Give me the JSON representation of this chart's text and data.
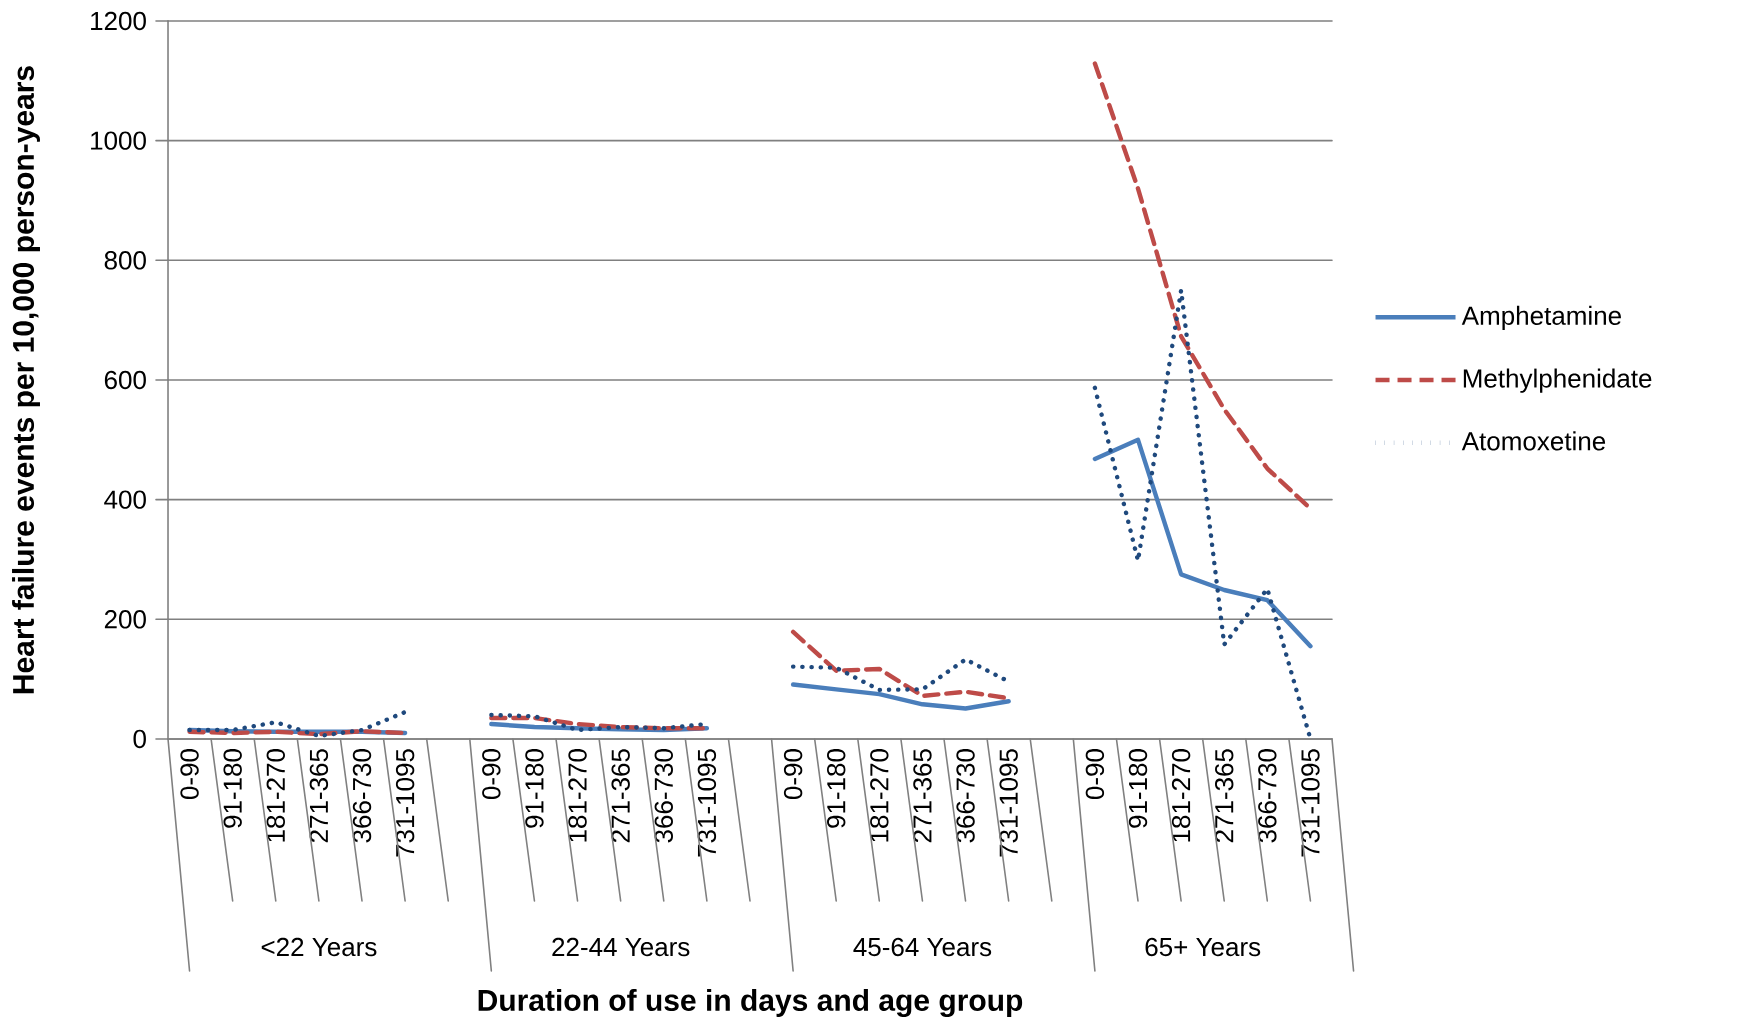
{
  "chart_data": {
    "type": "line",
    "xlabel": "Duration of use in days and age group",
    "ylabel": "Heart failure events per 10,000 person-years",
    "categories": [
      "0-90",
      "91-180",
      "181-270",
      "271-365",
      "366-730",
      "731-1095",
      null,
      "0-90",
      "91-180",
      "181-270",
      "271-365",
      "366-730",
      "731-1095",
      null,
      "0-90",
      "91-180",
      "181-270",
      "271-365",
      "366-730",
      "731-1095",
      null,
      "0-90",
      "91-180",
      "181-270",
      "271-365",
      "366-730",
      "731-1095"
    ],
    "annotations": [
      "<22 Years",
      "22-44 Years",
      "45-64 Years",
      "65+ Years"
    ],
    "series": [
      {
        "name": "Amphetamine",
        "color": "#4a7ebb",
        "line_style": "solid",
        "values": [
          15,
          13,
          12,
          12,
          12,
          10,
          null,
          25,
          20,
          18,
          16,
          15,
          18,
          null,
          91,
          83,
          75,
          58,
          51,
          63,
          null,
          468,
          500,
          275,
          249,
          232,
          155
        ]
      },
      {
        "name": "Methylphenidate",
        "color": "#be4b48",
        "line_style": "dashed",
        "values": [
          12,
          10,
          12,
          8,
          13,
          10,
          null,
          35,
          35,
          25,
          20,
          18,
          18,
          null,
          179,
          114,
          117,
          72,
          79,
          68,
          null,
          1129,
          920,
          673,
          551,
          452,
          385
        ]
      },
      {
        "name": "Atomoxetine",
        "color": "#1f497d",
        "line_style": "dotted",
        "values": [
          15,
          15,
          28,
          5,
          15,
          45,
          null,
          40,
          38,
          15,
          20,
          18,
          25,
          null,
          121,
          119,
          82,
          83,
          133,
          96,
          null,
          587,
          298,
          750,
          158,
          251,
          0
        ]
      }
    ],
    "ylim": [
      0,
      1200
    ],
    "yticks": [
      0,
      200,
      400,
      600,
      800,
      1000,
      1200
    ],
    "grid": "y",
    "legend": "right"
  }
}
